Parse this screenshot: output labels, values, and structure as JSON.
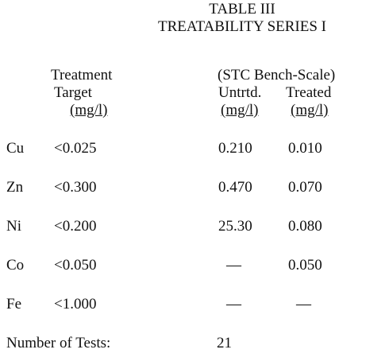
{
  "title": {
    "line1": "TABLE III",
    "line2": "TREATABILITY SERIES I"
  },
  "header": {
    "target": [
      "Treatment",
      "Target",
      "(mg/l)"
    ],
    "bench_scale": "(STC Bench-Scale)",
    "untreated": [
      "Untrtd.",
      "(mg/l)"
    ],
    "treated": [
      "Treated",
      "(mg/l)"
    ]
  },
  "table": {
    "rows": [
      [
        "Cu",
        "<0.025",
        "0.210",
        "0.010"
      ],
      [
        "Zn",
        "<0.300",
        "0.470",
        "0.070"
      ],
      [
        "Ni",
        "<0.200",
        "25.30",
        "0.080"
      ],
      [
        "Co",
        "<0.050",
        "—",
        "0.050"
      ],
      [
        "Fe",
        "<1.000",
        "—",
        "—"
      ]
    ]
  },
  "footer": {
    "label": "Number of Tests:",
    "value": "21"
  }
}
